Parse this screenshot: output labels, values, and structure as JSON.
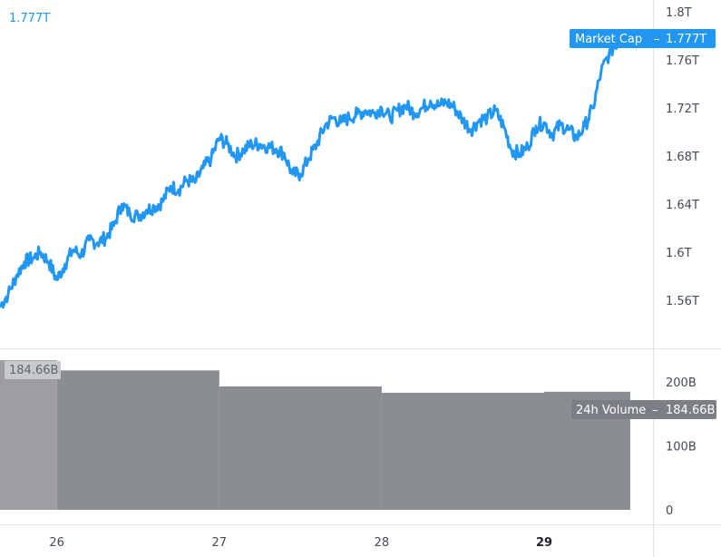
{
  "chart_data": [
    {
      "type": "line",
      "series": [
        {
          "name": "Market Cap",
          "color": "#2196f3",
          "x": [
            25.65,
            25.7,
            25.75,
            25.8,
            25.85,
            25.9,
            25.95,
            26.0,
            26.05,
            26.1,
            26.15,
            26.2,
            26.25,
            26.3,
            26.35,
            26.4,
            26.45,
            26.5,
            26.55,
            26.6,
            26.65,
            26.7,
            26.75,
            26.8,
            26.85,
            26.9,
            26.95,
            27.0,
            27.05,
            27.1,
            27.15,
            27.2,
            27.25,
            27.3,
            27.35,
            27.4,
            27.45,
            27.5,
            27.55,
            27.6,
            27.65,
            27.7,
            27.75,
            27.8,
            27.85,
            27.9,
            27.95,
            28.0,
            28.05,
            28.1,
            28.15,
            28.2,
            28.25,
            28.3,
            28.35,
            28.4,
            28.45,
            28.5,
            28.55,
            28.6,
            28.65,
            28.7,
            28.75,
            28.8,
            28.85,
            28.9,
            28.95,
            29.0,
            29.05,
            29.1,
            29.15,
            29.2,
            29.25,
            29.3,
            29.35,
            29.4,
            29.45,
            29.5,
            29.53
          ],
          "values": [
            1.555,
            1.565,
            1.58,
            1.592,
            1.595,
            1.6,
            1.592,
            1.577,
            1.59,
            1.602,
            1.598,
            1.61,
            1.608,
            1.612,
            1.622,
            1.64,
            1.632,
            1.63,
            1.635,
            1.638,
            1.642,
            1.655,
            1.652,
            1.66,
            1.658,
            1.67,
            1.678,
            1.695,
            1.69,
            1.68,
            1.685,
            1.69,
            1.69,
            1.688,
            1.686,
            1.682,
            1.665,
            1.665,
            1.678,
            1.69,
            1.705,
            1.712,
            1.708,
            1.712,
            1.715,
            1.718,
            1.716,
            1.72,
            1.712,
            1.718,
            1.722,
            1.716,
            1.72,
            1.726,
            1.722,
            1.725,
            1.72,
            1.71,
            1.702,
            1.71,
            1.712,
            1.718,
            1.705,
            1.685,
            1.682,
            1.688,
            1.705,
            1.708,
            1.698,
            1.706,
            1.702,
            1.695,
            1.705,
            1.72,
            1.75,
            1.765,
            1.775,
            1.777,
            1.777
          ]
        }
      ],
      "yticks": [
        "1.56T",
        "1.6T",
        "1.64T",
        "1.68T",
        "1.72T",
        "1.76T",
        "1.8T"
      ],
      "ytick_values": [
        1.56,
        1.6,
        1.64,
        1.68,
        1.72,
        1.76,
        1.8
      ],
      "ylim": [
        1.52,
        1.81
      ],
      "current_value": "1.777T",
      "price_tag": {
        "label": "Market Cap",
        "value": "1.777T"
      }
    },
    {
      "type": "bar",
      "series": [
        {
          "name": "24h Volume",
          "color": "#8a8d92",
          "x_start": [
            25.65,
            26.0,
            27.0,
            28.0,
            29.0
          ],
          "x_end": [
            26.0,
            27.0,
            28.0,
            29.0,
            29.53
          ],
          "values": [
            234,
            218,
            193,
            183,
            184.66
          ]
        }
      ],
      "yticks": [
        "0",
        "100B",
        "200B"
      ],
      "ytick_values": [
        0,
        100,
        200
      ],
      "ylim": [
        0,
        244
      ],
      "current_value": "184.66B",
      "price_tag": {
        "label": "24h Volume",
        "value": "184.66B"
      }
    }
  ],
  "xticks": [
    {
      "label": "26",
      "value": 26,
      "bold": false
    },
    {
      "label": "27",
      "value": 27,
      "bold": false
    },
    {
      "label": "28",
      "value": 28,
      "bold": false
    },
    {
      "label": "29",
      "value": 29,
      "bold": true
    }
  ],
  "xlim": [
    25.65,
    29.67
  ],
  "colors": {
    "line": "#2196f3",
    "volume": "#8a8d92",
    "volume_tag": "#7b7e84",
    "grid": "#e0e3e8",
    "axis_text": "#444b55"
  }
}
